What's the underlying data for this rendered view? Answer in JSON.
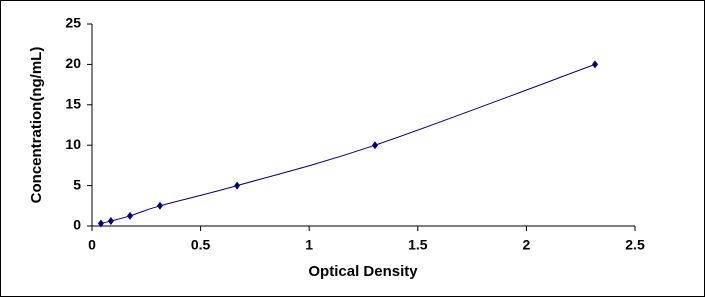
{
  "chart_data": {
    "type": "scatter",
    "x_label": "Optical Density",
    "y_label": "Concentration(ng/mL)",
    "x": [
      0.041,
      0.087,
      0.175,
      0.313,
      0.668,
      1.303,
      2.316
    ],
    "values": [
      0.312,
      0.625,
      1.25,
      2.5,
      5,
      10,
      20
    ],
    "color": "#000080",
    "xlim": [
      0,
      2.5
    ],
    "xticks": [
      0,
      0.5,
      1,
      1.5,
      2,
      2.5
    ],
    "ylim": [
      0,
      25
    ],
    "yticks": [
      0,
      5,
      10,
      15,
      20,
      25
    ],
    "grid": false,
    "trend_line": true
  }
}
